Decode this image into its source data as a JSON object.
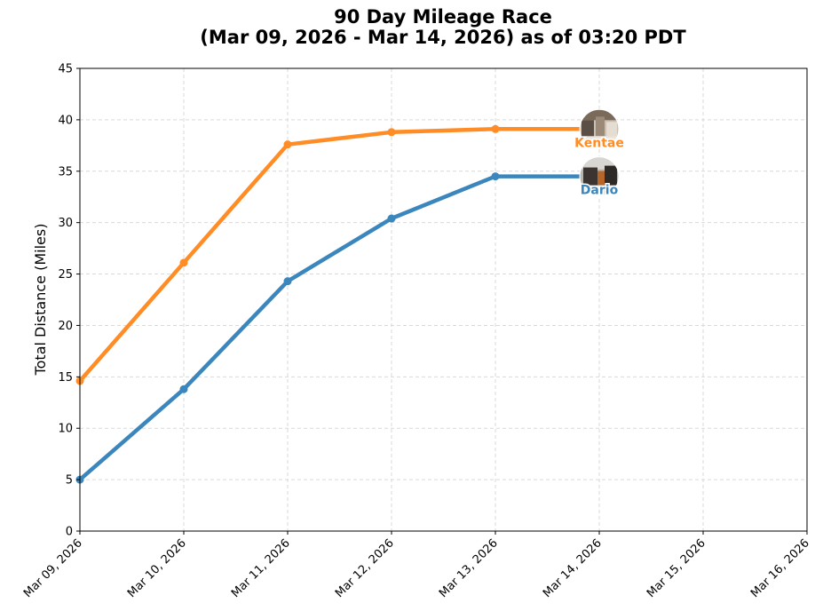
{
  "chart_data": {
    "type": "line",
    "title": "90 Day Mileage Race",
    "subtitle": "(Mar 09, 2026 - Mar 14, 2026) as of 03:20 PDT",
    "xlabel": "",
    "ylabel": "Total Distance (Miles)",
    "x_ticks": [
      "Mar 09, 2026",
      "Mar 10, 2026",
      "Mar 11, 2026",
      "Mar 12, 2026",
      "Mar 13, 2026",
      "Mar 14, 2026",
      "Mar 15, 2026",
      "Mar 16, 2026"
    ],
    "xlim": [
      "Mar 09, 2026",
      "Mar 16, 2026"
    ],
    "ylim": [
      0,
      45
    ],
    "y_ticks": [
      0,
      5,
      10,
      15,
      20,
      25,
      30,
      35,
      40,
      45
    ],
    "grid": true,
    "series": [
      {
        "name": "Kentae",
        "color": "#ff8c24",
        "x": [
          "Mar 09, 2026",
          "Mar 10, 2026",
          "Mar 11, 2026",
          "Mar 12, 2026",
          "Mar 13, 2026",
          "Mar 14, 2026"
        ],
        "values": [
          14.6,
          26.1,
          37.6,
          38.8,
          39.1,
          39.1
        ],
        "avatar": "avatar-photo"
      },
      {
        "name": "Dario",
        "color": "#3a86bd",
        "x": [
          "Mar 09, 2026",
          "Mar 10, 2026",
          "Mar 11, 2026",
          "Mar 12, 2026",
          "Mar 13, 2026",
          "Mar 14, 2026"
        ],
        "values": [
          5.0,
          13.8,
          24.3,
          30.4,
          34.5,
          34.5
        ],
        "avatar": "avatar-photo"
      }
    ]
  }
}
